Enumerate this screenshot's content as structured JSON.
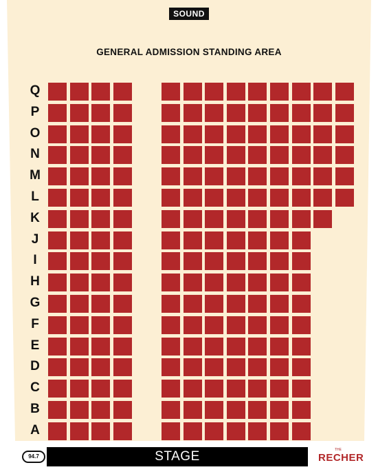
{
  "sound_label": "SOUND",
  "ga_label": "GENERAL ADMISSION STANDING AREA",
  "stage_label": "STAGE",
  "logo_left_text": "94.7",
  "logo_right": {
    "small": "THE",
    "big": "RECHER"
  },
  "colors": {
    "background": "#fcefd4",
    "seat": "#b2282a",
    "stage": "#000000"
  },
  "left_section_seats_per_row": 4,
  "rows": [
    {
      "label": "Q",
      "right_seats": 9
    },
    {
      "label": "P",
      "right_seats": 9
    },
    {
      "label": "O",
      "right_seats": 9
    },
    {
      "label": "N",
      "right_seats": 9
    },
    {
      "label": "M",
      "right_seats": 9
    },
    {
      "label": "L",
      "right_seats": 9
    },
    {
      "label": "K",
      "right_seats": 8
    },
    {
      "label": "J",
      "right_seats": 7
    },
    {
      "label": "I",
      "right_seats": 7
    },
    {
      "label": "H",
      "right_seats": 7
    },
    {
      "label": "G",
      "right_seats": 7
    },
    {
      "label": "F",
      "right_seats": 7
    },
    {
      "label": "E",
      "right_seats": 7
    },
    {
      "label": "D",
      "right_seats": 7
    },
    {
      "label": "C",
      "right_seats": 7
    },
    {
      "label": "B",
      "right_seats": 7
    },
    {
      "label": "A",
      "right_seats": 7
    }
  ]
}
